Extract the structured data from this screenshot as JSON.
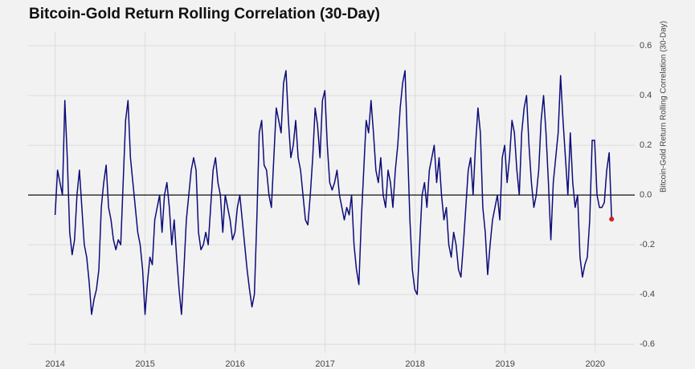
{
  "chart_data": {
    "type": "line",
    "title": "Bitcoin-Gold Return Rolling Correlation (30-Day)",
    "y_label": "Bitcoin-Gold Return Rolling Correlation (30-Day)",
    "color": "#0c0c7a",
    "marker_color": "#cc2222",
    "hline": 0,
    "grid": true,
    "xlim": [
      2013.7,
      2020.44
    ],
    "xticks": [
      2014,
      2015,
      2016,
      2017,
      2018,
      2019,
      2020
    ],
    "ylim": [
      -0.635,
      0.655
    ],
    "yticks": [
      -0.6,
      -0.4,
      -0.2,
      {
        "value": 0,
        "label": "0.0"
      },
      0.2,
      0.4,
      0.6
    ],
    "x": [
      2014,
      2014.027,
      2014.054,
      2014.081,
      2014.108,
      2014.135,
      2014.162,
      2014.189,
      2014.216,
      2014.243,
      2014.27,
      2014.297,
      2014.324,
      2014.351,
      2014.378,
      2014.405,
      2014.432,
      2014.459,
      2014.486,
      2014.513,
      2014.54,
      2014.567,
      2014.594,
      2014.621,
      2014.648,
      2014.675,
      2014.702,
      2014.729,
      2014.756,
      2014.783,
      2014.81,
      2014.837,
      2014.864,
      2014.891,
      2014.918,
      2014.945,
      2014.972,
      2014.999,
      2015.026,
      2015.053,
      2015.08,
      2015.107,
      2015.134,
      2015.161,
      2015.188,
      2015.215,
      2015.242,
      2015.269,
      2015.296,
      2015.323,
      2015.35,
      2015.377,
      2015.404,
      2015.431,
      2015.458,
      2015.485,
      2015.512,
      2015.539,
      2015.566,
      2015.593,
      2015.62,
      2015.647,
      2015.674,
      2015.701,
      2015.728,
      2015.755,
      2015.782,
      2015.809,
      2015.836,
      2015.863,
      2015.89,
      2015.917,
      2015.944,
      2015.971,
      2015.998,
      2016.025,
      2016.052,
      2016.079,
      2016.106,
      2016.133,
      2016.16,
      2016.187,
      2016.214,
      2016.241,
      2016.268,
      2016.295,
      2016.322,
      2016.349,
      2016.376,
      2016.403,
      2016.43,
      2016.457,
      2016.484,
      2016.511,
      2016.538,
      2016.565,
      2016.592,
      2016.619,
      2016.646,
      2016.673,
      2016.7,
      2016.727,
      2016.754,
      2016.781,
      2016.808,
      2016.835,
      2016.862,
      2016.889,
      2016.916,
      2016.943,
      2016.97,
      2016.997,
      2017.024,
      2017.051,
      2017.078,
      2017.105,
      2017.132,
      2017.159,
      2017.186,
      2017.213,
      2017.24,
      2017.267,
      2017.294,
      2017.321,
      2017.348,
      2017.375,
      2017.402,
      2017.429,
      2017.456,
      2017.483,
      2017.51,
      2017.537,
      2017.564,
      2017.591,
      2017.618,
      2017.645,
      2017.672,
      2017.699,
      2017.726,
      2017.753,
      2017.78,
      2017.807,
      2017.834,
      2017.861,
      2017.888,
      2017.915,
      2017.942,
      2017.969,
      2017.996,
      2018.023,
      2018.05,
      2018.077,
      2018.104,
      2018.131,
      2018.158,
      2018.185,
      2018.212,
      2018.239,
      2018.266,
      2018.293,
      2018.32,
      2018.347,
      2018.374,
      2018.401,
      2018.428,
      2018.455,
      2018.482,
      2018.509,
      2018.536,
      2018.563,
      2018.59,
      2018.617,
      2018.644,
      2018.671,
      2018.698,
      2018.725,
      2018.752,
      2018.779,
      2018.806,
      2018.833,
      2018.86,
      2018.887,
      2018.914,
      2018.941,
      2018.968,
      2018.995,
      2019.022,
      2019.049,
      2019.076,
      2019.103,
      2019.13,
      2019.157,
      2019.184,
      2019.211,
      2019.238,
      2019.265,
      2019.292,
      2019.319,
      2019.346,
      2019.373,
      2019.4,
      2019.427,
      2019.454,
      2019.481,
      2019.508,
      2019.535,
      2019.562,
      2019.589,
      2019.616,
      2019.643,
      2019.67,
      2019.697,
      2019.724,
      2019.751,
      2019.778,
      2019.805,
      2019.832,
      2019.859,
      2019.886,
      2019.913,
      2019.94,
      2019.967,
      2019.994,
      2020.021,
      2020.048,
      2020.075,
      2020.102,
      2020.129,
      2020.156,
      2020.183
    ],
    "values": [
      -0.08,
      0.1,
      0.05,
      0.0,
      0.38,
      0.15,
      -0.15,
      -0.24,
      -0.18,
      0.0,
      0.1,
      -0.05,
      -0.2,
      -0.25,
      -0.35,
      -0.48,
      -0.42,
      -0.38,
      -0.3,
      -0.05,
      0.05,
      0.12,
      -0.05,
      -0.1,
      -0.18,
      -0.22,
      -0.18,
      -0.2,
      0.05,
      0.3,
      0.38,
      0.15,
      0.05,
      -0.05,
      -0.15,
      -0.2,
      -0.3,
      -0.48,
      -0.35,
      -0.25,
      -0.28,
      -0.1,
      -0.05,
      0.0,
      -0.15,
      0.0,
      0.05,
      -0.05,
      -0.2,
      -0.1,
      -0.25,
      -0.38,
      -0.48,
      -0.3,
      -0.1,
      0.0,
      0.1,
      0.15,
      0.1,
      -0.15,
      -0.22,
      -0.2,
      -0.15,
      -0.2,
      -0.05,
      0.1,
      0.15,
      0.05,
      0.0,
      -0.15,
      0.0,
      -0.05,
      -0.1,
      -0.18,
      -0.15,
      -0.05,
      0.0,
      -0.1,
      -0.2,
      -0.3,
      -0.38,
      -0.45,
      -0.4,
      -0.1,
      0.25,
      0.3,
      0.12,
      0.1,
      0.0,
      -0.05,
      0.15,
      0.35,
      0.3,
      0.25,
      0.45,
      0.5,
      0.3,
      0.15,
      0.2,
      0.3,
      0.15,
      0.1,
      0.0,
      -0.1,
      -0.12,
      0.0,
      0.15,
      0.35,
      0.28,
      0.15,
      0.38,
      0.42,
      0.2,
      0.05,
      0.02,
      0.05,
      0.1,
      0.0,
      -0.05,
      -0.1,
      -0.05,
      -0.08,
      0.0,
      -0.2,
      -0.3,
      -0.36,
      -0.1,
      0.1,
      0.3,
      0.25,
      0.38,
      0.25,
      0.1,
      0.05,
      0.15,
      0.0,
      -0.05,
      0.1,
      0.05,
      -0.05,
      0.1,
      0.2,
      0.35,
      0.45,
      0.5,
      0.2,
      -0.1,
      -0.3,
      -0.38,
      -0.4,
      -0.2,
      0.0,
      0.05,
      -0.05,
      0.1,
      0.15,
      0.2,
      0.05,
      0.15,
      0.0,
      -0.1,
      -0.05,
      -0.2,
      -0.25,
      -0.15,
      -0.2,
      -0.3,
      -0.33,
      -0.2,
      -0.05,
      0.1,
      0.15,
      0.0,
      0.2,
      0.35,
      0.25,
      -0.05,
      -0.15,
      -0.32,
      -0.2,
      -0.1,
      -0.05,
      0.0,
      -0.1,
      0.15,
      0.2,
      0.05,
      0.15,
      0.3,
      0.25,
      0.1,
      0.0,
      0.25,
      0.35,
      0.4,
      0.2,
      0.05,
      -0.05,
      0.0,
      0.1,
      0.3,
      0.4,
      0.25,
      0.05,
      -0.18,
      0.05,
      0.15,
      0.25,
      0.48,
      0.3,
      0.15,
      0.0,
      0.25,
      0.05,
      -0.05,
      0.0,
      -0.25,
      -0.33,
      -0.28,
      -0.25,
      -0.1,
      0.22,
      0.22,
      0.0,
      -0.05,
      -0.05,
      -0.03,
      0.1,
      0.17,
      -0.097
    ]
  }
}
